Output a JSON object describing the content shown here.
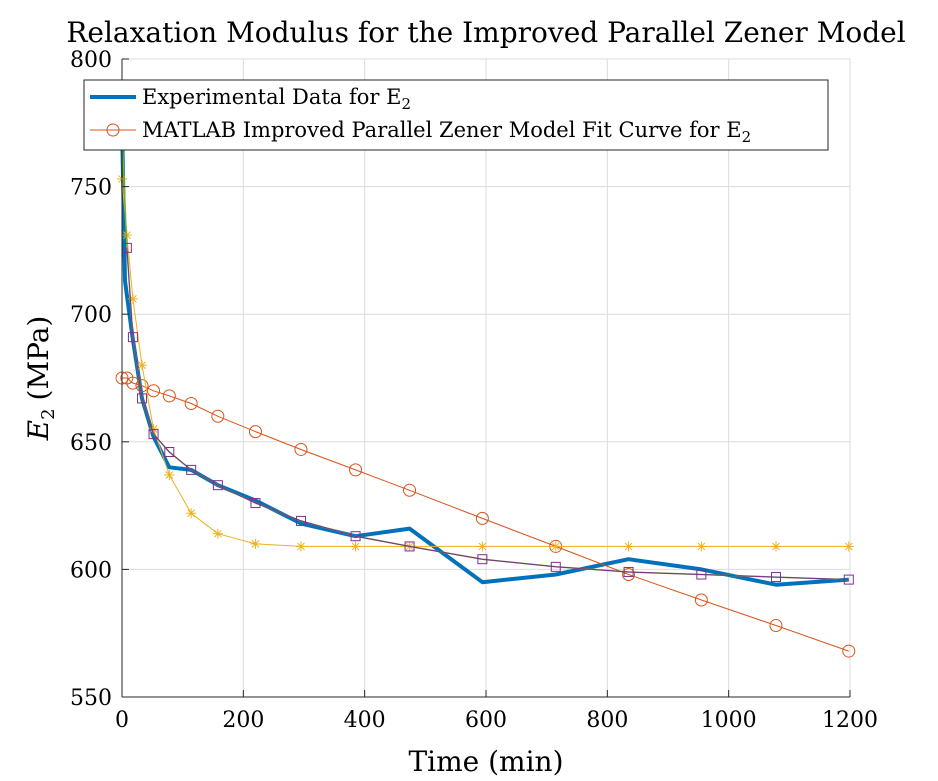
{
  "chart_data": {
    "type": "line",
    "title": "Relaxation Modulus for the Improved Parallel Zener Model",
    "xlabel": "Time (min)",
    "ylabel_main": "E",
    "ylabel_sub": "2",
    "ylabel_unit": "(MPa)",
    "xlim": [
      0,
      1200
    ],
    "ylim": [
      550,
      800
    ],
    "xticks": [
      0,
      200,
      400,
      600,
      800,
      1000,
      1200
    ],
    "yticks": [
      550,
      600,
      650,
      700,
      750,
      800
    ],
    "grid": true,
    "legend_position": "top-left",
    "series": [
      {
        "name_main": "Experimental Data for E",
        "name_sub": "2",
        "color": "#0072BD",
        "marker": "none",
        "line_width": 4,
        "legend": true,
        "x": [
          0,
          5,
          18,
          33,
          52,
          78,
          114,
          158,
          220,
          295,
          385,
          474,
          594,
          715,
          835,
          955,
          1078,
          1198
        ],
        "y": [
          775,
          713,
          690,
          667,
          652,
          640,
          639,
          633,
          627,
          618,
          613,
          616,
          595,
          598,
          604,
          600,
          594,
          596
        ]
      },
      {
        "name_main": "MATLAB Improved Parallel Zener Model Fit Curve for E",
        "name_sub": "2",
        "color": "#D95319",
        "marker": "circle",
        "line_width": 1,
        "legend": true,
        "x": [
          0,
          8,
          18,
          33,
          52,
          78,
          114,
          158,
          220,
          295,
          385,
          474,
          594,
          715,
          835,
          955,
          1078,
          1198
        ],
        "y": [
          675,
          675,
          673,
          672,
          670,
          668,
          665,
          660,
          654,
          647,
          639,
          631,
          620,
          609,
          598,
          588,
          578,
          568
        ]
      },
      {
        "name_main": "",
        "name_sub": "",
        "color": "#EDB120",
        "marker": "asterisk",
        "line_width": 1,
        "legend": false,
        "x": [
          0,
          8,
          18,
          33,
          52,
          78,
          114,
          158,
          220,
          295,
          385,
          474,
          594,
          715,
          835,
          955,
          1078,
          1198
        ],
        "y": [
          753,
          731,
          706,
          680,
          655,
          637,
          622,
          614,
          610,
          609,
          609,
          609,
          609,
          609,
          609,
          609,
          609,
          609
        ]
      },
      {
        "name_main": "",
        "name_sub": "",
        "color": "#77AC30",
        "marker": "none",
        "line_width": 1.5,
        "legend": false,
        "x": [
          0,
          8,
          18,
          33,
          52,
          78,
          114,
          158,
          220,
          295,
          385,
          474,
          594,
          715,
          835,
          955,
          1078,
          1198
        ],
        "y": [
          770,
          726,
          691,
          667,
          653,
          646,
          639,
          633,
          626,
          619,
          613,
          609,
          604,
          601,
          599,
          598,
          597,
          596
        ]
      },
      {
        "name_main": "",
        "name_sub": "",
        "color": "#7E2F8E",
        "marker": "square",
        "line_width": 1,
        "legend": false,
        "x": [
          8,
          18,
          33,
          52,
          78,
          114,
          158,
          220,
          295,
          385,
          474,
          594,
          715,
          835,
          955,
          1078,
          1198
        ],
        "y": [
          726,
          691,
          667,
          653,
          646,
          639,
          633,
          626,
          619,
          613,
          609,
          604,
          601,
          599,
          598,
          597,
          596
        ]
      }
    ]
  }
}
